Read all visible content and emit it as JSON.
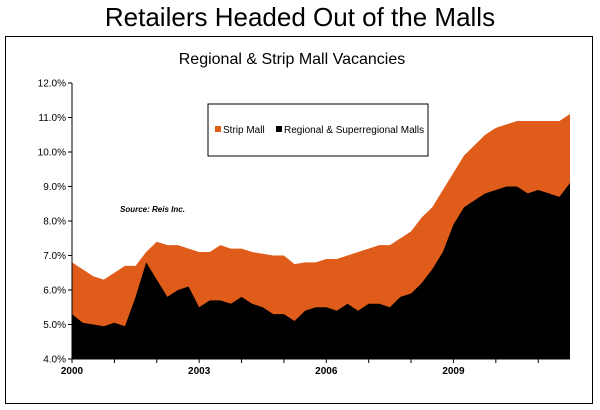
{
  "page_title": "Retailers Headed Out of the Malls",
  "chart_data": {
    "type": "area",
    "title": "Regional & Strip Mall Vacancies",
    "source": "Source: Reis Inc.",
    "xlabel": "",
    "ylabel": "",
    "x_tick_labels": [
      "2000",
      "2003",
      "2006",
      "2009"
    ],
    "x_tick_values": [
      2000,
      2003,
      2006,
      2009
    ],
    "xlim": [
      2000,
      2011.75
    ],
    "y_tick_labels": [
      "4.0%",
      "5.0%",
      "6.0%",
      "7.0%",
      "8.0%",
      "9.0%",
      "10.0%",
      "11.0%",
      "12.0%"
    ],
    "ylim": [
      4.0,
      12.0
    ],
    "grid": false,
    "legend_position": "top-center",
    "x": [
      2000,
      2000.25,
      2000.5,
      2000.75,
      2001,
      2001.25,
      2001.5,
      2001.75,
      2002,
      2002.25,
      2002.5,
      2002.75,
      2003,
      2003.25,
      2003.5,
      2003.75,
      2004,
      2004.25,
      2004.5,
      2004.75,
      2005,
      2005.25,
      2005.5,
      2005.75,
      2006,
      2006.25,
      2006.5,
      2006.75,
      2007,
      2007.25,
      2007.5,
      2007.75,
      2008,
      2008.25,
      2008.5,
      2008.75,
      2009,
      2009.25,
      2009.5,
      2009.75,
      2010,
      2010.25,
      2010.5,
      2010.75,
      2011,
      2011.25,
      2011.5,
      2011.75
    ],
    "series": [
      {
        "name": "Strip Mall",
        "color": "#e05c1a",
        "values": [
          6.8,
          6.6,
          6.4,
          6.3,
          6.5,
          6.7,
          6.7,
          7.1,
          7.4,
          7.3,
          7.3,
          7.2,
          7.1,
          7.1,
          7.3,
          7.2,
          7.2,
          7.1,
          7.05,
          7.0,
          7.0,
          6.75,
          6.8,
          6.8,
          6.9,
          6.9,
          7.0,
          7.1,
          7.2,
          7.3,
          7.3,
          7.5,
          7.7,
          8.1,
          8.4,
          8.9,
          9.4,
          9.9,
          10.2,
          10.5,
          10.7,
          10.8,
          10.9,
          10.9,
          10.9,
          10.9,
          10.9,
          11.1
        ]
      },
      {
        "name": "Regional & Superregional Malls",
        "color": "#000000",
        "values": [
          5.3,
          5.05,
          5.0,
          4.95,
          5.05,
          4.95,
          5.8,
          6.8,
          6.3,
          5.8,
          6.0,
          6.1,
          5.5,
          5.7,
          5.7,
          5.6,
          5.8,
          5.6,
          5.5,
          5.3,
          5.3,
          5.1,
          5.4,
          5.5,
          5.5,
          5.4,
          5.6,
          5.4,
          5.6,
          5.6,
          5.5,
          5.8,
          5.9,
          6.2,
          6.6,
          7.1,
          7.9,
          8.4,
          8.6,
          8.8,
          8.9,
          9.0,
          9.0,
          8.8,
          8.9,
          8.8,
          8.7,
          9.1
        ]
      }
    ]
  }
}
